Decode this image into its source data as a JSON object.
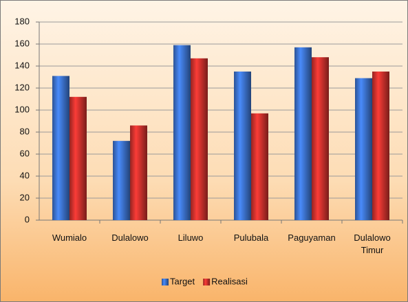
{
  "chart_data": {
    "type": "bar",
    "categories": [
      "Wumialo",
      "Dulalowo",
      "Liluwo",
      "Pulubala",
      "Paguyaman",
      "Dulalowo Timur"
    ],
    "series": [
      {
        "name": "Target",
        "color": "#3a6fc8",
        "values": [
          131,
          72,
          159,
          135,
          157,
          129
        ]
      },
      {
        "name": "Realisasi",
        "color": "#c8302c",
        "values": [
          112,
          86,
          147,
          97,
          148,
          135
        ]
      }
    ],
    "ylim": [
      0,
      180
    ],
    "yticks": [
      0,
      20,
      40,
      60,
      80,
      100,
      120,
      140,
      160,
      180
    ],
    "grid": true,
    "legend": "bottom"
  }
}
